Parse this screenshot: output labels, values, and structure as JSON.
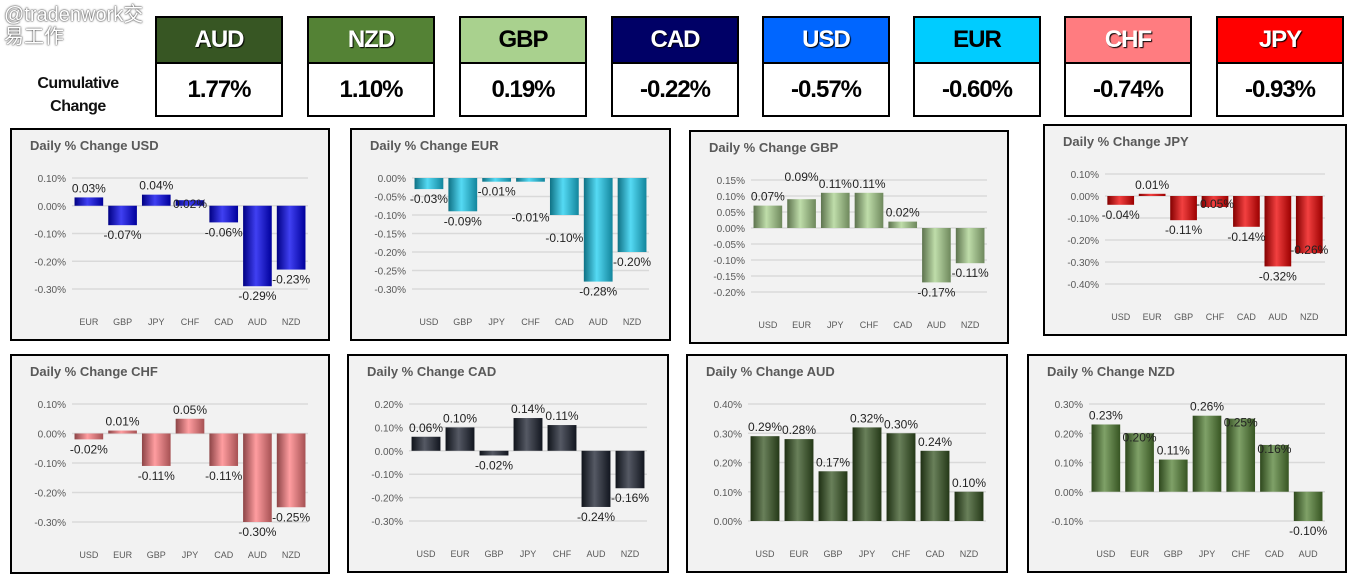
{
  "cumulative": {
    "label": "Cumulative Change",
    "currencies": [
      {
        "code": "AUD",
        "value": "1.77%",
        "color": "#375623",
        "text_color": "#ffffff"
      },
      {
        "code": "NZD",
        "value": "1.10%",
        "color": "#548235",
        "text_color": "#ffffff"
      },
      {
        "code": "GBP",
        "value": "0.19%",
        "color": "#a9d18e",
        "text_color": "#000000"
      },
      {
        "code": "CAD",
        "value": "-0.22%",
        "color": "#000066",
        "text_color": "#ffffff"
      },
      {
        "code": "USD",
        "value": "-0.57%",
        "color": "#0066ff",
        "text_color": "#ffffff"
      },
      {
        "code": "EUR",
        "value": "-0.60%",
        "color": "#00ccff",
        "text_color": "#000000"
      },
      {
        "code": "CHF",
        "value": "-0.74%",
        "color": "#ff7c80",
        "text_color": "#ffffff"
      },
      {
        "code": "JPY",
        "value": "-0.93%",
        "color": "#ff0000",
        "text_color": "#ffffff"
      }
    ]
  },
  "chart_data": [
    {
      "type": "bar",
      "title": "Daily % Change USD",
      "categories": [
        "EUR",
        "GBP",
        "JPY",
        "CHF",
        "CAD",
        "AUD",
        "NZD"
      ],
      "values": [
        0.03,
        -0.07,
        0.04,
        0.02,
        -0.06,
        -0.29,
        -0.23
      ],
      "ylim": [
        -0.3,
        0.1
      ],
      "ytick_step": 0.1,
      "color": "#0000ee",
      "grid": true
    },
    {
      "type": "bar",
      "title": "Daily % Change EUR",
      "categories": [
        "USD",
        "GBP",
        "JPY",
        "CHF",
        "CAD",
        "AUD",
        "NZD"
      ],
      "values": [
        -0.03,
        -0.09,
        -0.01,
        -0.01,
        -0.1,
        -0.28,
        -0.2
      ],
      "ylim": [
        -0.3,
        0.0
      ],
      "ytick_step": 0.05,
      "color": "#1ccdf0",
      "grid": true
    },
    {
      "type": "bar",
      "title": "Daily % Change GBP",
      "categories": [
        "USD",
        "EUR",
        "JPY",
        "CHF",
        "CAD",
        "AUD",
        "NZD"
      ],
      "values": [
        0.07,
        0.09,
        0.11,
        0.11,
        0.02,
        -0.17,
        -0.11
      ],
      "ylim": [
        -0.2,
        0.15
      ],
      "ytick_step": 0.05,
      "color": "#a9d18e",
      "grid": true
    },
    {
      "type": "bar",
      "title": "Daily % Change JPY",
      "categories": [
        "USD",
        "EUR",
        "GBP",
        "CHF",
        "CAD",
        "AUD",
        "NZD"
      ],
      "values": [
        -0.04,
        0.01,
        -0.11,
        -0.05,
        -0.14,
        -0.32,
        -0.26
      ],
      "ylim": [
        -0.4,
        0.1
      ],
      "ytick_step": 0.1,
      "color": "#ee0000",
      "grid": true
    },
    {
      "type": "bar",
      "title": "Daily % Change CHF",
      "categories": [
        "USD",
        "EUR",
        "GBP",
        "JPY",
        "CAD",
        "AUD",
        "NZD"
      ],
      "values": [
        -0.02,
        0.01,
        -0.11,
        0.05,
        -0.11,
        -0.3,
        -0.25
      ],
      "ylim": [
        -0.3,
        0.1
      ],
      "ytick_step": 0.1,
      "color": "#ff7c80",
      "grid": true
    },
    {
      "type": "bar",
      "title": "Daily % Change CAD",
      "categories": [
        "USD",
        "EUR",
        "GBP",
        "JPY",
        "CHF",
        "AUD",
        "NZD"
      ],
      "values": [
        0.06,
        0.1,
        -0.02,
        0.14,
        0.11,
        -0.24,
        -0.16
      ],
      "ylim": [
        -0.3,
        0.2
      ],
      "ytick_step": 0.1,
      "color": "#1c2230",
      "grid": true
    },
    {
      "type": "bar",
      "title": "Daily % Change AUD",
      "categories": [
        "USD",
        "EUR",
        "GBP",
        "JPY",
        "CHF",
        "CAD",
        "NZD"
      ],
      "values": [
        0.29,
        0.28,
        0.17,
        0.32,
        0.3,
        0.24,
        0.1
      ],
      "ylim": [
        0.0,
        0.4
      ],
      "ytick_step": 0.1,
      "color": "#375623",
      "grid": true
    },
    {
      "type": "bar",
      "title": "Daily % Change NZD",
      "categories": [
        "USD",
        "EUR",
        "GBP",
        "JPY",
        "CHF",
        "CAD",
        "AUD"
      ],
      "values": [
        0.23,
        0.2,
        0.11,
        0.26,
        0.25,
        0.16,
        -0.1
      ],
      "ylim": [
        -0.1,
        0.3
      ],
      "ytick_step": 0.1,
      "color": "#548235",
      "grid": true
    }
  ],
  "watermark": "@tradenwork交易工作"
}
